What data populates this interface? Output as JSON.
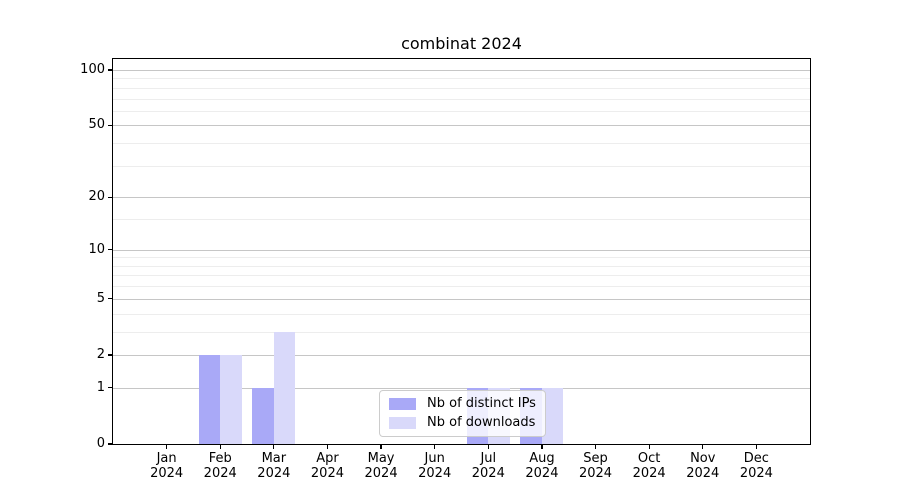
{
  "chart_data": {
    "type": "bar",
    "title": "combinat 2024",
    "categories": [
      "Jan",
      "Feb",
      "Mar",
      "Apr",
      "May",
      "Jun",
      "Jul",
      "Aug",
      "Sep",
      "Oct",
      "Nov",
      "Dec"
    ],
    "x_year": "2024",
    "series": [
      {
        "name": "Nb of distinct IPs",
        "color": "#a9a9f7",
        "values": [
          0,
          2,
          1,
          0,
          0,
          0,
          1,
          1,
          0,
          0,
          0,
          0
        ]
      },
      {
        "name": "Nb of downloads",
        "color": "#d9d9fa",
        "values": [
          0,
          2,
          3,
          0,
          0,
          0,
          1,
          1,
          0,
          0,
          0,
          0
        ]
      }
    ],
    "xlabel": "",
    "ylabel": "",
    "y_axis": {
      "scale": "log1p",
      "ticks": [
        0,
        1,
        2,
        5,
        10,
        20,
        50,
        100
      ],
      "minor_gridlines": [
        3,
        4,
        6,
        7,
        8,
        9,
        15,
        30,
        40,
        60,
        70,
        80,
        90
      ],
      "range": [
        0,
        110
      ]
    },
    "legend": {
      "position": "inside-bottom-center",
      "entries": [
        "Nb of distinct IPs",
        "Nb of downloads"
      ]
    },
    "layout": {
      "grid": "on",
      "bar_mode": "grouped-pair-centered-on-tick"
    },
    "colors": {
      "major_grid": "#c6c6c6",
      "minor_grid": "#ededed",
      "frame": "#000000",
      "background": "#ffffff"
    }
  }
}
